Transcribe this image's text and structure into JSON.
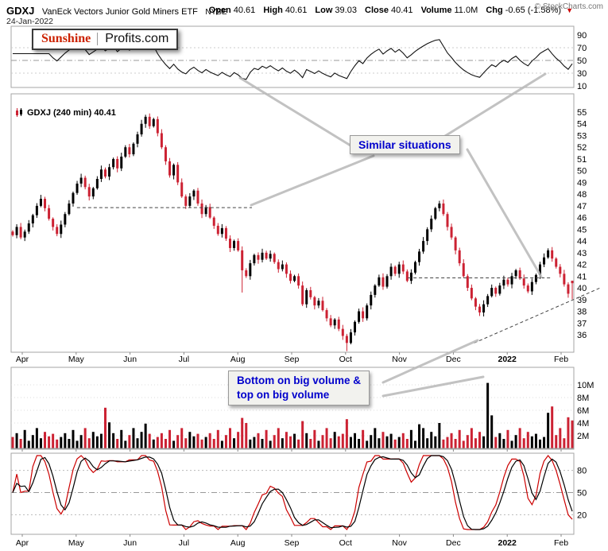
{
  "header": {
    "symbol": "GDXJ",
    "name": "VanEck Vectors Junior Gold Miners ETF",
    "exchange": "NYSE",
    "date": "24-Jan-2022",
    "copyright": "© StockCharts.com",
    "quote": {
      "open_label": "Open",
      "open": "40.61",
      "high_label": "High",
      "high": "40.61",
      "low_label": "Low",
      "low": "39.03",
      "close_label": "Close",
      "close": "40.41",
      "volume_label": "Volume",
      "volume": "11.0M",
      "chg_label": "Chg",
      "chg": "-0.65 (-1.58%)",
      "down_arrow": "▼"
    }
  },
  "logo": {
    "part1": "Sunshine",
    "part2": "Profits.com"
  },
  "legend": {
    "main": "GDXJ (240 min) 40.41"
  },
  "annotations": {
    "similar": "Similar situations",
    "volume_note_line1": "Bottom on big volume &",
    "volume_note_line2": "top on big volume",
    "callouts": [
      [
        441,
        183,
        302,
        98
      ],
      [
        560,
        171,
        686,
        93
      ],
      [
        470,
        196,
        316,
        258
      ],
      [
        588,
        188,
        681,
        348
      ],
      [
        482,
        481,
        601,
        428
      ],
      [
        482,
        498,
        608,
        474
      ]
    ]
  },
  "colors": {
    "up": "#000000",
    "down": "#cc2233",
    "rsi_line": "#111111",
    "stoch_fast": "#cc0000",
    "stoch_slow": "#000000",
    "annotation_text": "#0000cc",
    "callout": "#b8b8b8",
    "panel_border": "#a6a6a6"
  },
  "x_axis": {
    "labels": [
      "Apr",
      "May",
      "Jun",
      "Jul",
      "Aug",
      "Sep",
      "Oct",
      "Nov",
      "Dec",
      "2022",
      "Feb"
    ],
    "bold_index": 9
  },
  "axes": {
    "main_ticks": [
      55,
      54,
      53,
      52,
      51,
      50,
      49,
      48,
      47,
      46,
      45,
      44,
      43,
      42,
      41,
      40,
      39,
      38,
      37,
      36
    ],
    "rsi_ticks": [
      90,
      70,
      50,
      30,
      10
    ],
    "vol_ticks": [
      "10M",
      "8M",
      "6M",
      "4M",
      "2M"
    ],
    "vol_tick_values": [
      10,
      8,
      6,
      4,
      2
    ],
    "stoch_ticks": [
      80,
      50,
      20
    ]
  },
  "chart_data": {
    "type": "candlestick",
    "symbol": "GDXJ",
    "timeframe": "240 min",
    "title": "GDXJ (240 min) 40.41",
    "x_range": [
      "Apr 2021",
      "Feb 2022"
    ],
    "price_axis_range": [
      34.5,
      56.5
    ],
    "panels": {
      "top": "momentum oscillator (RSI-style), 0-100 scale, dashed midline 50, ticks 90/70/50/30/10",
      "main": "240-minute candlesticks, up=black down=red",
      "volume": "volume bars in millions, ticks 2M-10M",
      "bottom": "stochastic oscillator, fast line red / slow line black, ticks 80/50/20"
    },
    "closes": [
      44.5,
      45.2,
      44.3,
      44.8,
      45.5,
      46.2,
      47.0,
      47.6,
      46.8,
      45.9,
      45.2,
      44.6,
      45.4,
      46.3,
      47.2,
      48.1,
      48.9,
      49.4,
      48.6,
      47.8,
      48.5,
      49.3,
      50.1,
      49.5,
      50.3,
      51.0,
      50.2,
      51.2,
      52.0,
      51.4,
      52.3,
      53.1,
      54.0,
      54.6,
      53.8,
      54.4,
      53.2,
      52.0,
      50.8,
      49.6,
      50.5,
      49.0,
      47.8,
      47.0,
      47.8,
      48.3,
      47.2,
      46.3,
      46.9,
      46.0,
      45.3,
      44.6,
      45.1,
      44.2,
      43.4,
      44.0,
      43.2,
      41.5,
      41.0,
      42.1,
      42.8,
      42.4,
      43.0,
      42.5,
      42.9,
      42.2,
      41.6,
      42.0,
      41.2,
      40.6,
      41.0,
      40.2,
      38.6,
      39.8,
      39.2,
      38.5,
      38.9,
      38.1,
      37.4,
      36.8,
      37.3,
      36.5,
      35.9,
      35.3,
      36.2,
      37.1,
      38.0,
      37.4,
      38.5,
      39.4,
      40.2,
      40.9,
      40.1,
      41.0,
      41.8,
      41.2,
      42.0,
      41.4,
      40.6,
      41.3,
      42.2,
      43.1,
      44.0,
      45.0,
      45.9,
      46.8,
      47.2,
      46.3,
      45.2,
      44.3,
      43.2,
      42.1,
      41.0,
      40.0,
      39.1,
      38.4,
      37.9,
      38.6,
      39.3,
      40.0,
      39.5,
      40.2,
      40.7,
      40.3,
      41.0,
      41.5,
      40.8,
      40.2,
      39.7,
      40.5,
      41.1,
      42.0,
      42.6,
      43.2,
      42.5,
      41.8,
      41.2,
      40.3,
      39.5,
      40.4
    ],
    "volumes_millions": [
      1.8,
      2.4,
      1.5,
      2.9,
      1.2,
      2.1,
      3.2,
      1.6,
      2.6,
      1.9,
      2.3,
      1.4,
      1.8,
      2.4,
      1.5,
      2.9,
      1.2,
      2.1,
      3.2,
      1.6,
      2.6,
      1.9,
      2.3,
      6.4,
      4.1,
      2.4,
      1.5,
      2.9,
      1.2,
      2.1,
      3.2,
      1.6,
      2.6,
      3.9,
      2.3,
      1.4,
      1.8,
      2.4,
      1.5,
      2.9,
      1.2,
      2.1,
      3.2,
      1.6,
      2.6,
      1.9,
      2.3,
      1.4,
      1.8,
      2.4,
      1.5,
      2.9,
      1.2,
      2.1,
      3.2,
      1.6,
      2.6,
      4.8,
      4.0,
      1.4,
      1.8,
      2.4,
      1.5,
      2.9,
      1.2,
      2.1,
      3.2,
      1.6,
      2.6,
      1.9,
      2.3,
      1.4,
      4.3,
      2.4,
      1.5,
      2.9,
      1.2,
      2.1,
      3.2,
      1.6,
      2.6,
      1.9,
      2.3,
      4.6,
      1.8,
      2.4,
      1.5,
      2.9,
      1.2,
      2.1,
      3.2,
      1.6,
      2.6,
      1.9,
      2.3,
      1.4,
      1.8,
      2.4,
      1.5,
      2.9,
      1.2,
      3.8,
      3.2,
      1.6,
      2.6,
      1.9,
      4.0,
      1.4,
      1.8,
      2.4,
      1.5,
      2.9,
      1.2,
      2.1,
      3.2,
      1.6,
      2.6,
      1.9,
      10.3,
      5.2,
      1.8,
      2.4,
      1.5,
      2.9,
      1.2,
      2.1,
      3.2,
      1.6,
      2.6,
      1.9,
      2.3,
      1.4,
      1.8,
      5.6,
      6.6,
      2.1,
      3.2,
      1.6,
      4.9,
      4.4
    ],
    "wick_overrides": {
      "57": {
        "low": 39.6
      },
      "83": {
        "low": 34.6
      },
      "116": {
        "low": 37.6
      },
      "139": {
        "open": 40.61,
        "high": 40.61,
        "low": 39.03
      }
    },
    "overlays": {
      "dashed_levels": [
        {
          "price": 46.85,
          "from_frac": 0.117,
          "to_frac": 0.428
        },
        {
          "price": 40.85,
          "from_frac": 0.705,
          "to_frac": 0.958
        }
      ],
      "trendline": {
        "x1_frac": 0.823,
        "price1": 35.3,
        "x2_frac": 1.047,
        "price2": 40.0,
        "style": "dashed"
      }
    },
    "indicator_note": "top panel and bottom panel values are derived from closes (RSI-9, Stochastic-10 smoothed)"
  }
}
